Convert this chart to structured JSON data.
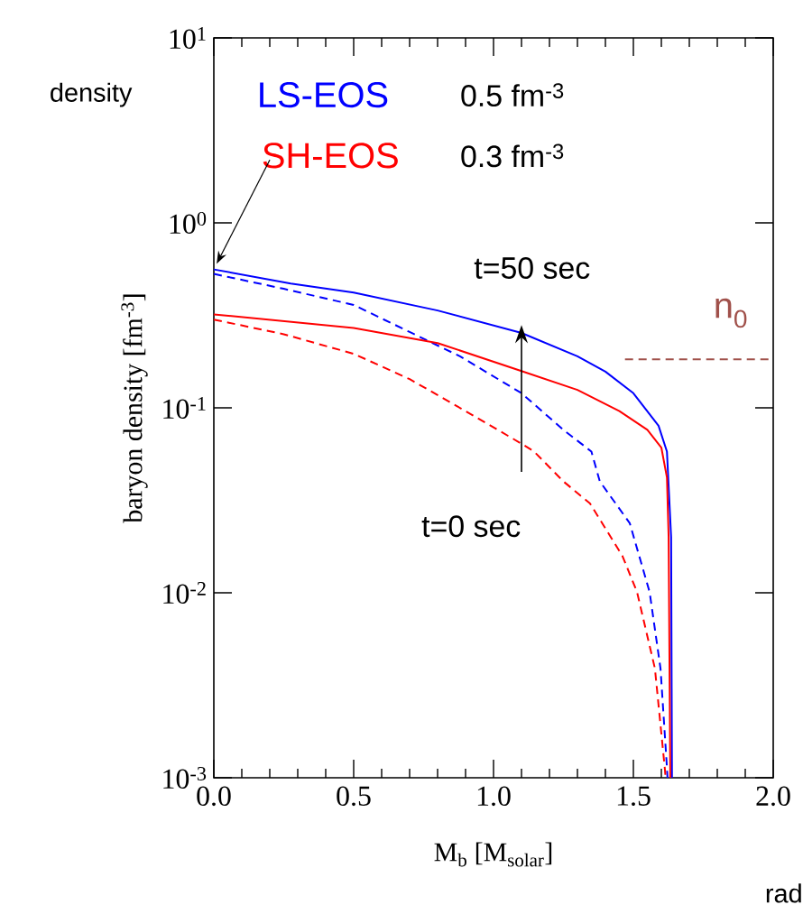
{
  "chart_data": {
    "type": "line",
    "xlabel": "M$_{b}$ [M$_{solar}$]",
    "ylabel": "baryon density [fm$^{-3}$]",
    "log": "y",
    "xlim": [
      0,
      2
    ],
    "ylim": [
      0.001,
      10
    ],
    "xticks": [
      {
        "value": 0,
        "label": "0.0"
      },
      {
        "value": 0.5,
        "label": "0.5"
      },
      {
        "value": 1,
        "label": "1.0"
      },
      {
        "value": 1.5,
        "label": "1.5"
      },
      {
        "value": 2,
        "label": "2.0"
      }
    ],
    "yticks": [
      {
        "value": 0.001,
        "label": "10$^{-3}$"
      },
      {
        "value": 0.01,
        "label": "10$^{-2}$"
      },
      {
        "value": 0.1,
        "label": "10$^{-1}$"
      },
      {
        "value": 1,
        "label": "10$^{0}$"
      },
      {
        "value": 10,
        "label": "10$^{1}$"
      }
    ],
    "grid": false,
    "legend": "top left",
    "series": [
      {
        "name": "LS-EOS",
        "color": "#0000ff",
        "line_style": "solid",
        "x": [
          0,
          0.275,
          0.5,
          0.8,
          1.1,
          1.3,
          1.4,
          1.5,
          1.59,
          1.62,
          1.635,
          1.638
        ],
        "values": [
          0.56,
          0.47,
          0.42,
          0.336,
          0.254,
          0.19,
          0.157,
          0.12,
          0.08,
          0.058,
          0.02,
          0.001
        ]
      },
      {
        "color": "#0000ff",
        "line_style": "dashed",
        "x": [
          0,
          0.25,
          0.5,
          0.7,
          0.88,
          1.1,
          1.25,
          1.35,
          1.38,
          1.487,
          1.558,
          1.597,
          1.619,
          1.622
        ],
        "values": [
          0.53,
          0.44,
          0.36,
          0.257,
          0.19,
          0.12,
          0.076,
          0.058,
          0.04,
          0.0238,
          0.0101,
          0.0039,
          0.0012,
          0.001
        ]
      },
      {
        "name": "SH-EOS",
        "color": "#ff0000",
        "line_style": "solid",
        "x": [
          0,
          0.5,
          0.8,
          1.1,
          1.3,
          1.45,
          1.55,
          1.6,
          1.62,
          1.626,
          1.632
        ],
        "values": [
          0.32,
          0.27,
          0.224,
          0.158,
          0.125,
          0.096,
          0.076,
          0.061,
          0.042,
          0.02,
          0.001
        ]
      },
      {
        "color": "#ff0000",
        "line_style": "dashed",
        "x": [
          0,
          0.25,
          0.5,
          0.7,
          0.9,
          1.1,
          1.145,
          1.25,
          1.345,
          1.461,
          1.513,
          1.577,
          1.613,
          1.615
        ],
        "values": [
          0.3,
          0.25,
          0.196,
          0.143,
          0.096,
          0.064,
          0.058,
          0.04,
          0.0304,
          0.0158,
          0.0101,
          0.0039,
          0.0011,
          0.001
        ]
      },
      {
        "name": "n$_{0}$",
        "color": "#a0504a",
        "line_style": "dashed",
        "x": [
          1.47,
          2.0
        ],
        "values": [
          0.183,
          0.183
        ]
      }
    ],
    "annotations": [
      "density",
      "0.5 fm$^{-3}$",
      "0.3 fm$^{-3}$",
      "t=50 sec",
      "t=0 sec",
      "rad"
    ]
  }
}
